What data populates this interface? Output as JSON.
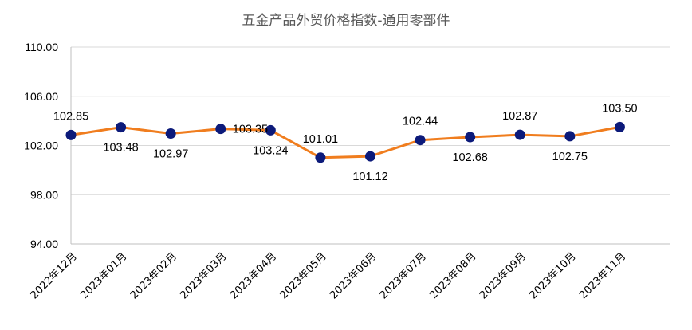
{
  "chart_data": {
    "type": "line",
    "title": "五金产品外贸价格指数-通用零部件",
    "xlabel": "",
    "ylabel": "",
    "categories": [
      "2022年12月",
      "2023年01月",
      "2023年02月",
      "2023年03月",
      "2023年04月",
      "2023年05月",
      "2023年06月",
      "2023年07月",
      "2023年08月",
      "2023年09月",
      "2023年10月",
      "2023年11月"
    ],
    "series": [
      {
        "values": [
          102.85,
          103.48,
          102.97,
          103.35,
          103.24,
          101.01,
          101.12,
          102.44,
          102.68,
          102.87,
          102.75,
          103.5
        ],
        "labels": [
          "102.85",
          "103.48",
          "102.97",
          "103.35",
          "103.24",
          "101.01",
          "101.12",
          "102.44",
          "102.68",
          "102.87",
          "102.75",
          "103.50"
        ],
        "label_position": [
          "above",
          "below",
          "below",
          "right",
          "below",
          "above",
          "below",
          "above",
          "below",
          "above",
          "below",
          "above"
        ]
      }
    ],
    "yticks": [
      "94.00",
      "98.00",
      "102.00",
      "106.00",
      "110.00"
    ],
    "ylim": [
      94,
      110
    ],
    "grid": true,
    "legend": "none",
    "colors": {
      "line": "#f07d1e",
      "marker": "#0c1a7a"
    }
  }
}
